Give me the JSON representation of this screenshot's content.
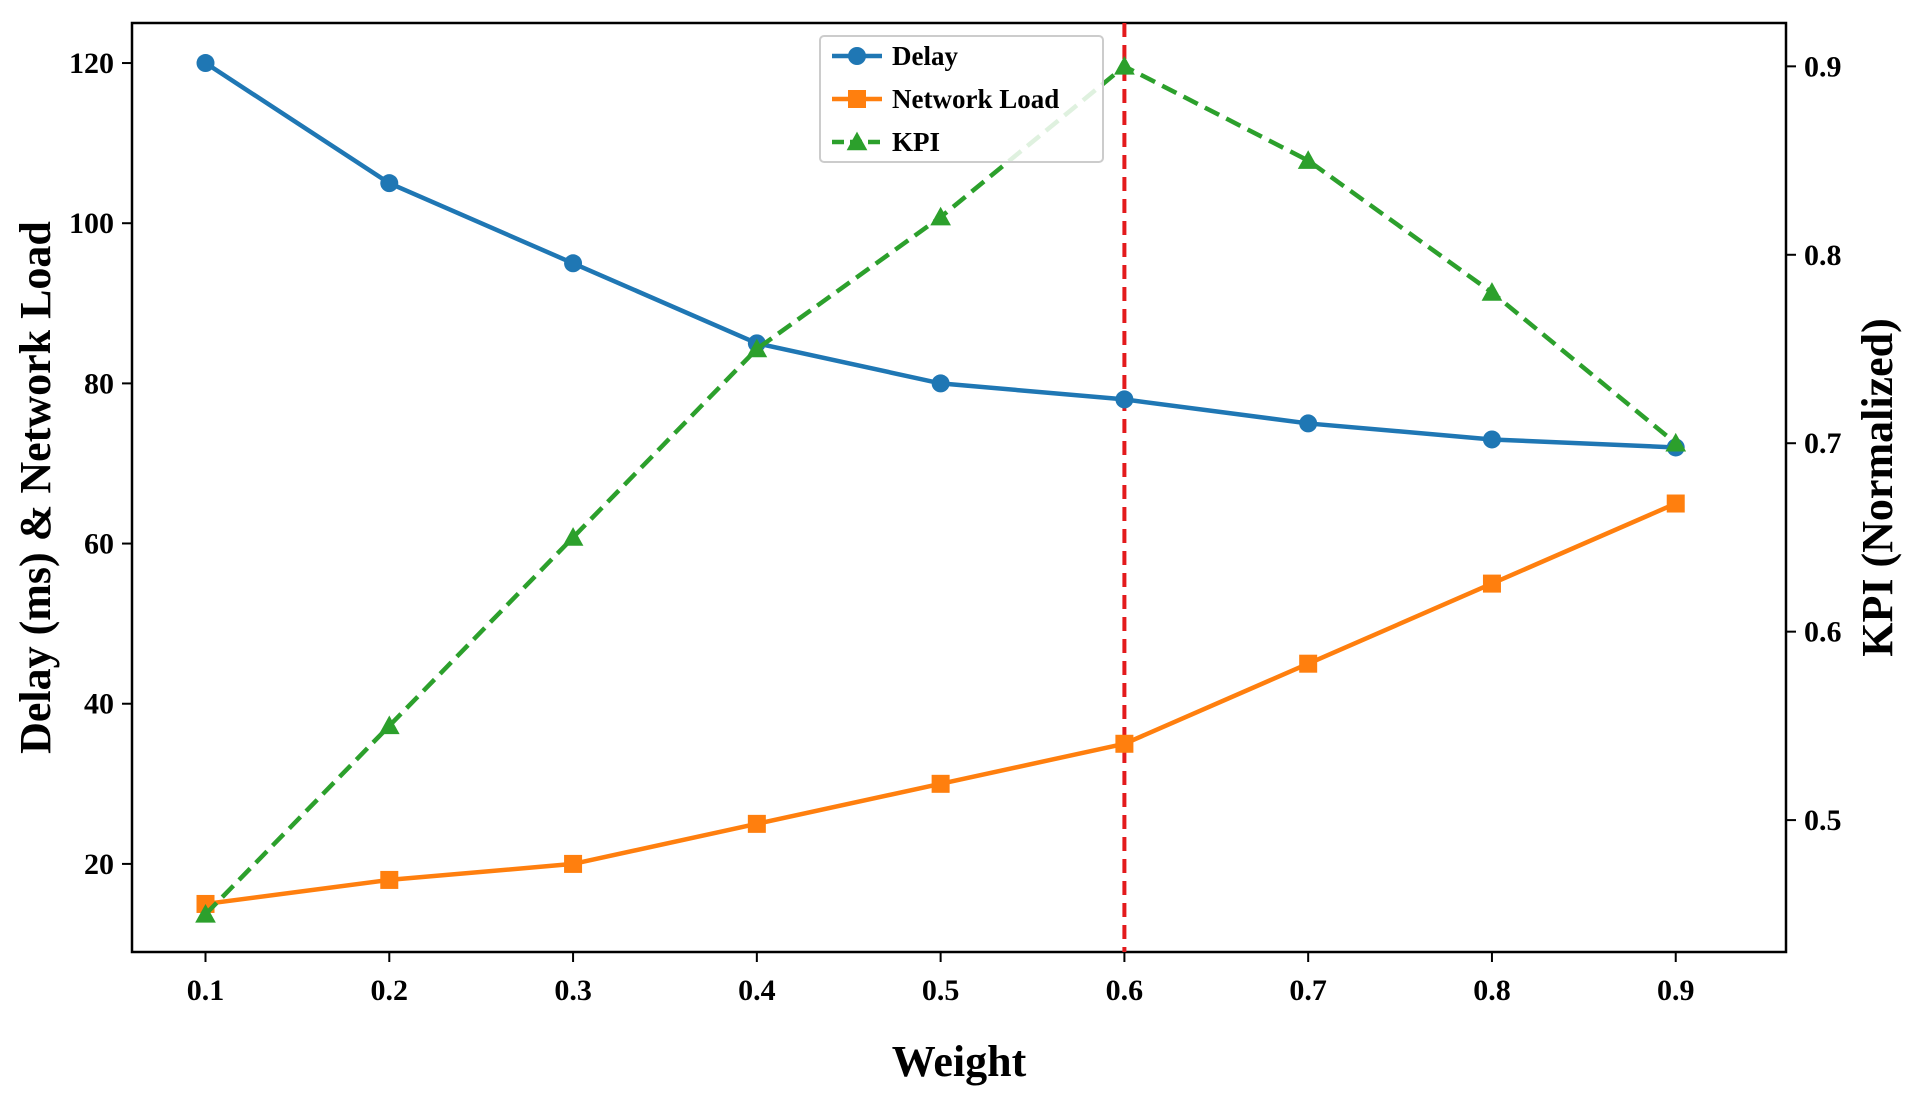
{
  "chart_data": {
    "type": "line",
    "x": [
      0.1,
      0.2,
      0.3,
      0.4,
      0.5,
      0.6,
      0.7,
      0.8,
      0.9
    ],
    "x_tick_labels": [
      "0.1",
      "0.2",
      "0.3",
      "0.4",
      "0.5",
      "0.6",
      "0.7",
      "0.8",
      "0.9"
    ],
    "xlabel": "Weight",
    "ylabel_left": "Delay (ms) & Network  Load",
    "ylabel_right": "KPI (Normalized)",
    "xlim": [
      0.06,
      0.96
    ],
    "ylim_left": [
      9,
      125
    ],
    "ylim_right": [
      0.43,
      0.923
    ],
    "y_ticks_left": [
      20,
      40,
      60,
      80,
      100,
      120
    ],
    "y_tick_labels_left": [
      "20",
      "40",
      "60",
      "80",
      "100",
      "120"
    ],
    "y_ticks_right": [
      0.5,
      0.6,
      0.7,
      0.8,
      0.9
    ],
    "y_tick_labels_right": [
      "0.5",
      "0.6",
      "0.7",
      "0.8",
      "0.9"
    ],
    "grid": false,
    "legend_position": "top-center",
    "series": [
      {
        "name": "Delay",
        "axis": "left",
        "values": [
          120,
          105,
          95,
          85,
          80,
          78,
          75,
          73,
          72
        ],
        "color": "#1f77b4",
        "marker": "circle",
        "linestyle": "solid"
      },
      {
        "name": "Network Load",
        "axis": "left",
        "values": [
          15,
          18,
          20,
          25,
          30,
          35,
          45,
          55,
          65
        ],
        "color": "#ff7f0e",
        "marker": "square",
        "linestyle": "solid"
      },
      {
        "name": "KPI",
        "axis": "right",
        "values": [
          0.45,
          0.55,
          0.65,
          0.75,
          0.82,
          0.9,
          0.85,
          0.78,
          0.7
        ],
        "color": "#2ca02c",
        "marker": "triangle",
        "linestyle": "dashed"
      }
    ],
    "vline": {
      "x": 0.6,
      "color": "#e31a1c",
      "linestyle": "dashed"
    }
  }
}
